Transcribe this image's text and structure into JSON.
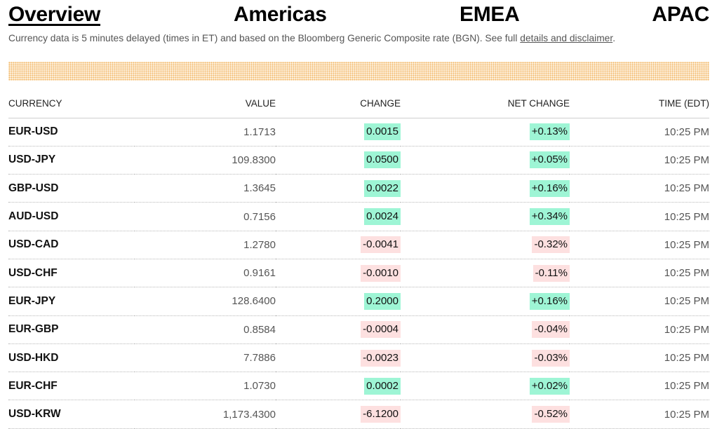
{
  "tabs": [
    {
      "label": "Overview",
      "active": true
    },
    {
      "label": "Americas",
      "active": false
    },
    {
      "label": "EMEA",
      "active": false
    },
    {
      "label": "APAC",
      "active": false
    }
  ],
  "disclaimer": {
    "text": "Currency data is 5 minutes delayed (times in ET) and based on the Bloomberg Generic Composite rate (BGN). See full ",
    "link_label": "details and disclaimer",
    "suffix": "."
  },
  "colors": {
    "positive_bg": "#9ef5d5",
    "negative_bg": "#fde0e0",
    "ad_strip_dots": "#f2b86a"
  },
  "table": {
    "headers": {
      "currency": "CURRENCY",
      "value": "VALUE",
      "change": "CHANGE",
      "net_change": "NET CHANGE",
      "time": "TIME (EDT)"
    },
    "rows": [
      {
        "currency": "EUR-USD",
        "value": "1.1713",
        "change": "0.0015",
        "net_change": "+0.13%",
        "time": "10:25 PM",
        "direction": "pos"
      },
      {
        "currency": "USD-JPY",
        "value": "109.8300",
        "change": "0.0500",
        "net_change": "+0.05%",
        "time": "10:25 PM",
        "direction": "pos"
      },
      {
        "currency": "GBP-USD",
        "value": "1.3645",
        "change": "0.0022",
        "net_change": "+0.16%",
        "time": "10:25 PM",
        "direction": "pos"
      },
      {
        "currency": "AUD-USD",
        "value": "0.7156",
        "change": "0.0024",
        "net_change": "+0.34%",
        "time": "10:25 PM",
        "direction": "pos"
      },
      {
        "currency": "USD-CAD",
        "value": "1.2780",
        "change": "-0.0041",
        "net_change": "-0.32%",
        "time": "10:25 PM",
        "direction": "neg"
      },
      {
        "currency": "USD-CHF",
        "value": "0.9161",
        "change": "-0.0010",
        "net_change": "-0.11%",
        "time": "10:25 PM",
        "direction": "neg"
      },
      {
        "currency": "EUR-JPY",
        "value": "128.6400",
        "change": "0.2000",
        "net_change": "+0.16%",
        "time": "10:25 PM",
        "direction": "pos"
      },
      {
        "currency": "EUR-GBP",
        "value": "0.8584",
        "change": "-0.0004",
        "net_change": "-0.04%",
        "time": "10:25 PM",
        "direction": "neg"
      },
      {
        "currency": "USD-HKD",
        "value": "7.7886",
        "change": "-0.0023",
        "net_change": "-0.03%",
        "time": "10:25 PM",
        "direction": "neg"
      },
      {
        "currency": "EUR-CHF",
        "value": "1.0730",
        "change": "0.0002",
        "net_change": "+0.02%",
        "time": "10:25 PM",
        "direction": "pos"
      },
      {
        "currency": "USD-KRW",
        "value": "1,173.4300",
        "change": "-6.1200",
        "net_change": "-0.52%",
        "time": "10:25 PM",
        "direction": "neg"
      }
    ]
  }
}
